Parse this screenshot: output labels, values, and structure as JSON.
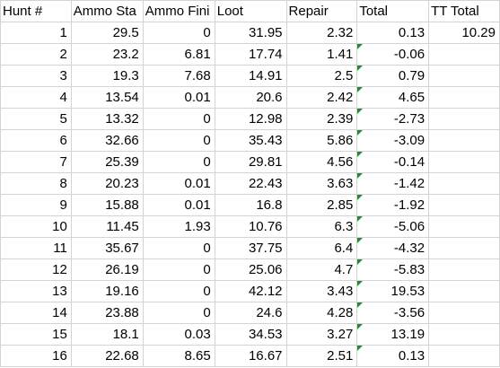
{
  "colors": {
    "gridline": "#d4d4d4",
    "error_indicator": "#1e8a3a"
  },
  "headers": [
    "Hunt #",
    "Ammo Sta",
    "Ammo Fini",
    "Loot",
    "Repair",
    "Total",
    "TT Total"
  ],
  "rows": [
    [
      "1",
      "29.5",
      "0",
      "31.95",
      "2.32",
      "0.13",
      "10.29"
    ],
    [
      "2",
      "23.2",
      "6.81",
      "17.74",
      "1.41",
      "-0.06",
      ""
    ],
    [
      "3",
      "19.3",
      "7.68",
      "14.91",
      "2.5",
      "0.79",
      ""
    ],
    [
      "4",
      "13.54",
      "0.01",
      "20.6",
      "2.42",
      "4.65",
      ""
    ],
    [
      "5",
      "13.32",
      "0",
      "12.98",
      "2.39",
      "-2.73",
      ""
    ],
    [
      "6",
      "32.66",
      "0",
      "35.43",
      "5.86",
      "-3.09",
      ""
    ],
    [
      "7",
      "25.39",
      "0",
      "29.81",
      "4.56",
      "-0.14",
      ""
    ],
    [
      "8",
      "20.23",
      "0.01",
      "22.43",
      "3.63",
      "-1.42",
      ""
    ],
    [
      "9",
      "15.88",
      "0.01",
      "16.8",
      "2.85",
      "-1.92",
      ""
    ],
    [
      "10",
      "11.45",
      "1.93",
      "10.76",
      "6.3",
      "-5.06",
      ""
    ],
    [
      "11",
      "35.67",
      "0",
      "37.75",
      "6.4",
      "-4.32",
      ""
    ],
    [
      "12",
      "26.19",
      "0",
      "25.06",
      "4.7",
      "-5.83",
      ""
    ],
    [
      "13",
      "19.16",
      "0",
      "42.12",
      "3.43",
      "19.53",
      ""
    ],
    [
      "14",
      "23.88",
      "0",
      "24.6",
      "4.28",
      "-3.56",
      ""
    ],
    [
      "15",
      "18.1",
      "0.03",
      "34.53",
      "3.27",
      "13.19",
      ""
    ],
    [
      "16",
      "22.68",
      "8.65",
      "16.67",
      "2.51",
      "0.13",
      ""
    ]
  ]
}
